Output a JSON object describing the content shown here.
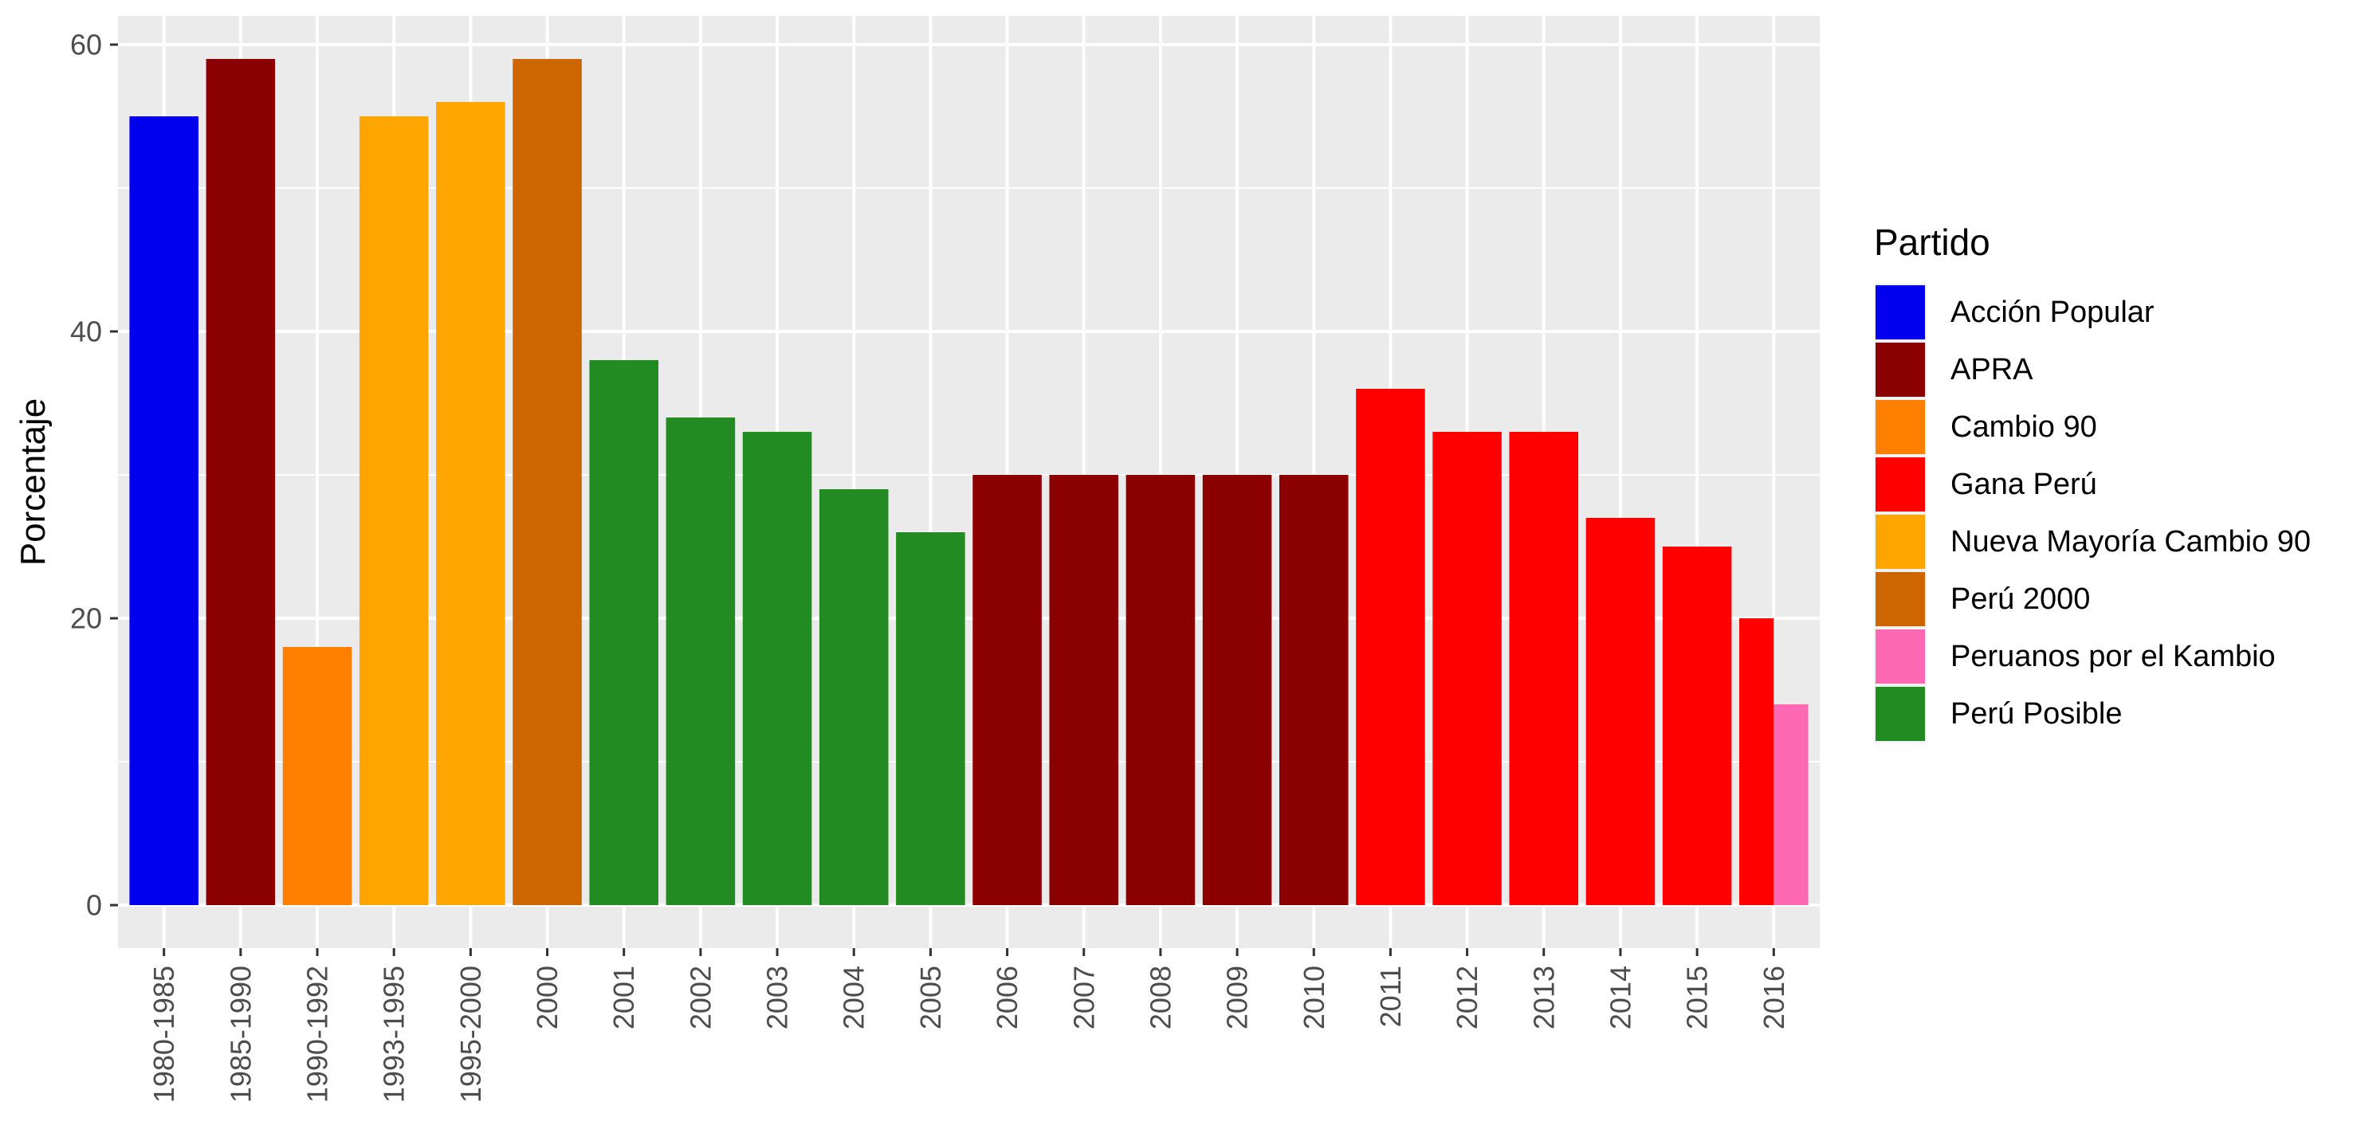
{
  "chart_data": {
    "type": "bar",
    "title": "",
    "xlabel": "",
    "ylabel": "Porcentaje",
    "ylim": [
      -3,
      62
    ],
    "yticks": [
      0,
      20,
      40,
      60
    ],
    "grid": true,
    "legend_position": "right",
    "legend_title": "Partido",
    "parties": [
      {
        "name": "Acción Popular",
        "color": "#0000EE"
      },
      {
        "name": "APRA",
        "color": "#8B0000"
      },
      {
        "name": "Cambio 90",
        "color": "#FF7F00"
      },
      {
        "name": "Gana Perú",
        "color": "#FF0000"
      },
      {
        "name": "Nueva Mayoría Cambio 90",
        "color": "#FFA500"
      },
      {
        "name": "Perú 2000",
        "color": "#CD6600"
      },
      {
        "name": "Peruanos por el Kambio",
        "color": "#FF69B4"
      },
      {
        "name": "Perú Posible",
        "color": "#228B22"
      }
    ],
    "categories": [
      "1980-1985",
      "1985-1990",
      "1990-1992",
      "1993-1995",
      "1995-2000",
      "2000",
      "2001",
      "2002",
      "2003",
      "2004",
      "2005",
      "2006",
      "2007",
      "2008",
      "2009",
      "2010",
      "2011",
      "2012",
      "2013",
      "2014",
      "2015",
      "2016"
    ],
    "bars": [
      {
        "category": "1980-1985",
        "segments": [
          {
            "party": "Acción Popular",
            "value": 55
          }
        ]
      },
      {
        "category": "1985-1990",
        "segments": [
          {
            "party": "APRA",
            "value": 59
          }
        ]
      },
      {
        "category": "1990-1992",
        "segments": [
          {
            "party": "Cambio 90",
            "value": 18
          }
        ]
      },
      {
        "category": "1993-1995",
        "segments": [
          {
            "party": "Nueva Mayoría Cambio 90",
            "value": 55
          }
        ]
      },
      {
        "category": "1995-2000",
        "segments": [
          {
            "party": "Nueva Mayoría Cambio 90",
            "value": 56
          }
        ]
      },
      {
        "category": "2000",
        "segments": [
          {
            "party": "Perú 2000",
            "value": 59
          }
        ]
      },
      {
        "category": "2001",
        "segments": [
          {
            "party": "Perú Posible",
            "value": 38
          }
        ]
      },
      {
        "category": "2002",
        "segments": [
          {
            "party": "Perú Posible",
            "value": 34
          }
        ]
      },
      {
        "category": "2003",
        "segments": [
          {
            "party": "Perú Posible",
            "value": 33
          }
        ]
      },
      {
        "category": "2004",
        "segments": [
          {
            "party": "Perú Posible",
            "value": 29
          }
        ]
      },
      {
        "category": "2005",
        "segments": [
          {
            "party": "Perú Posible",
            "value": 26
          }
        ]
      },
      {
        "category": "2006",
        "segments": [
          {
            "party": "APRA",
            "value": 30
          }
        ]
      },
      {
        "category": "2007",
        "segments": [
          {
            "party": "APRA",
            "value": 30
          }
        ]
      },
      {
        "category": "2008",
        "segments": [
          {
            "party": "APRA",
            "value": 30
          }
        ]
      },
      {
        "category": "2009",
        "segments": [
          {
            "party": "APRA",
            "value": 30
          }
        ]
      },
      {
        "category": "2010",
        "segments": [
          {
            "party": "APRA",
            "value": 30
          }
        ]
      },
      {
        "category": "2011",
        "segments": [
          {
            "party": "Gana Perú",
            "value": 36
          }
        ]
      },
      {
        "category": "2012",
        "segments": [
          {
            "party": "Gana Perú",
            "value": 33
          }
        ]
      },
      {
        "category": "2013",
        "segments": [
          {
            "party": "Gana Perú",
            "value": 33
          }
        ]
      },
      {
        "category": "2014",
        "segments": [
          {
            "party": "Gana Perú",
            "value": 27
          }
        ]
      },
      {
        "category": "2015",
        "segments": [
          {
            "party": "Gana Perú",
            "value": 25
          }
        ]
      },
      {
        "category": "2016",
        "segments": [
          {
            "party": "Gana Perú",
            "value": 20
          },
          {
            "party": "Peruanos por el Kambio",
            "value": 14
          }
        ]
      }
    ]
  }
}
